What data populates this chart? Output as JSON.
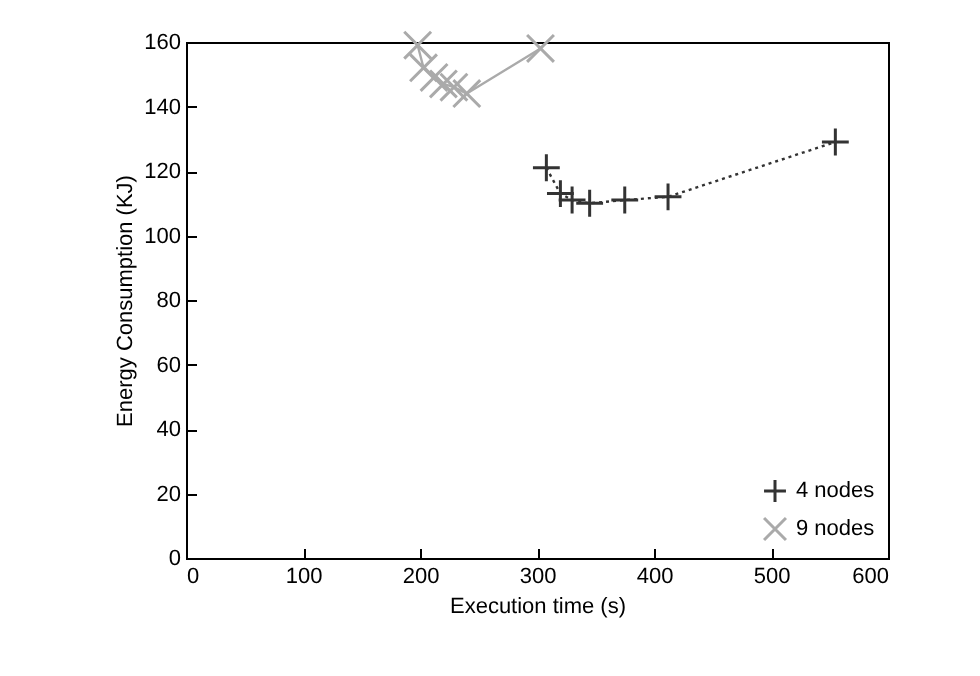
{
  "chart_data": {
    "type": "line",
    "xlabel": "Execution time (s)",
    "ylabel": "Energy Consumption (KJ)",
    "xlim": [
      0,
      600
    ],
    "xticks": [
      0,
      100,
      200,
      300,
      400,
      500,
      600
    ],
    "ylim": [
      0,
      160
    ],
    "yticks": [
      0,
      20,
      40,
      60,
      80,
      100,
      120,
      140,
      160
    ],
    "grid": false,
    "legend": "bottom right",
    "marker": "cross",
    "series": [
      {
        "name": "4 nodes",
        "color": "#333333",
        "line_style": "dotted",
        "x": [
          308,
          320,
          330,
          345,
          375,
          412,
          555
        ],
        "values": [
          121,
          113,
          111,
          110,
          111,
          112,
          129
        ]
      },
      {
        "name": "9 nodes",
        "color": "#aaaaaa",
        "line_style": "solid",
        "x": [
          198,
          203,
          212,
          220,
          229,
          240,
          303
        ],
        "values": [
          159,
          152,
          149,
          147,
          146,
          144,
          158
        ]
      }
    ]
  }
}
